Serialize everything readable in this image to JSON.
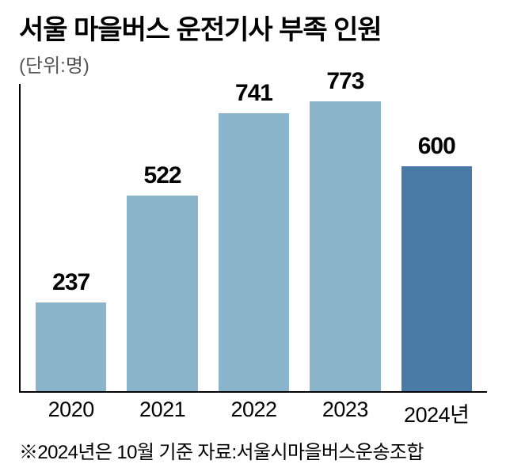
{
  "chart": {
    "type": "bar",
    "title": "서울 마을버스 운전기사 부족 인원",
    "unit": "(단위:명)",
    "title_fontsize": 34,
    "unit_fontsize": 24,
    "axis_color": "#000000",
    "background_color": "#ffffff",
    "ylim_max": 820,
    "value_fontsize": 30,
    "xlabel_fontsize": 27,
    "footnote_fontsize": 24,
    "bar_default_color": "#8ab5cb",
    "bar_highlight_color": "#4a7ba6",
    "categories": [
      "2020",
      "2021",
      "2022",
      "2023",
      "2024년"
    ],
    "values": [
      237,
      522,
      741,
      773,
      600
    ],
    "bar_colors": [
      "#8ab5cb",
      "#8ab5cb",
      "#8ab5cb",
      "#8ab5cb",
      "#4a7ba6"
    ],
    "footnote": "※2024년은 10월 기준 자료:서울시마을버스운송조합"
  }
}
